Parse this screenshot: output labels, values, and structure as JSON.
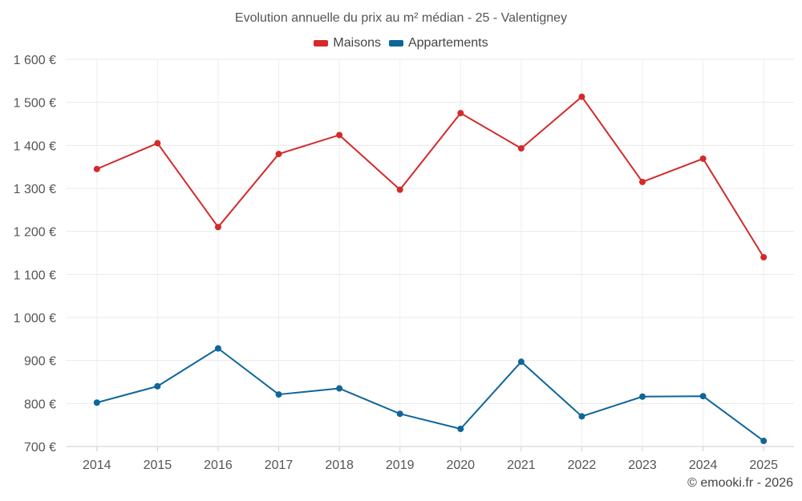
{
  "chart_data": {
    "type": "line",
    "title": "Evolution annuelle du prix au m² médian - 25 - Valentigney",
    "xlabel": "",
    "ylabel": "",
    "categories": [
      "2014",
      "2015",
      "2016",
      "2017",
      "2018",
      "2019",
      "2020",
      "2021",
      "2022",
      "2023",
      "2024",
      "2025"
    ],
    "ylim": [
      700,
      1600
    ],
    "yticks": [
      700,
      800,
      900,
      1000,
      1100,
      1200,
      1300,
      1400,
      1500,
      1600
    ],
    "ytick_labels": [
      "700 €",
      "800 €",
      "900 €",
      "1 000 €",
      "1 100 €",
      "1 200 €",
      "1 300 €",
      "1 400 €",
      "1 500 €",
      "1 600 €"
    ],
    "grid": true,
    "legend_position": "top-center",
    "series": [
      {
        "name": "Maisons",
        "color": "#d42a2a",
        "values": [
          1345,
          1405,
          1210,
          1380,
          1424,
          1297,
          1475,
          1393,
          1513,
          1315,
          1369,
          1140
        ]
      },
      {
        "name": "Appartements",
        "color": "#0e6699",
        "values": [
          802,
          840,
          928,
          821,
          835,
          776,
          741,
          897,
          770,
          816,
          817,
          713
        ]
      }
    ]
  },
  "footer": {
    "credit": "© emooki.fr - 2026"
  }
}
